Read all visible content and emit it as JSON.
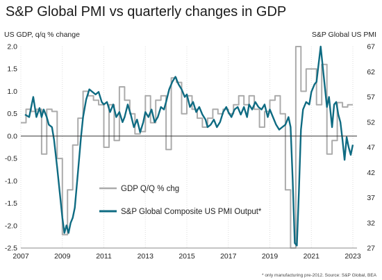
{
  "title": "S&P Global PMI vs quarterly changes in GDP",
  "footnote": "* only manufacturing pre-2012. Source: S&P Global, BEA",
  "colors": {
    "gdp": "#ababab",
    "pmi": "#0e6b82",
    "zero_line": "#333333",
    "grid": "#dcdcdc"
  },
  "chart_data": {
    "type": "line",
    "title": "S&P Global PMI vs quarterly changes in GDP",
    "left_axis": {
      "label": "US GDP, q/q % change",
      "ylim": [
        -2.5,
        2.0
      ],
      "ticks": [
        "2.0",
        "1.5",
        "1.0",
        "0.5",
        "0.0",
        "-0.5",
        "-1.0",
        "-1.5",
        "-2.0",
        "-2.5"
      ]
    },
    "right_axis": {
      "label": "S&P Global US PMI",
      "ylim": [
        27,
        67
      ],
      "ticks": [
        "67",
        "62",
        "57",
        "52",
        "47",
        "42",
        "37",
        "32",
        "27"
      ]
    },
    "x_axis": {
      "xlim": [
        2007.0,
        2023.2
      ],
      "ticks": [
        "2007",
        "2009",
        "2011",
        "2013",
        "2015",
        "2017",
        "2019",
        "2021",
        "2023"
      ]
    },
    "grid": true,
    "legend": {
      "placement": "lower-left",
      "entries": [
        "GDP Q/Q % chg",
        "S&P Global Composite US PMI Output*"
      ]
    },
    "series": [
      {
        "name": "GDP Q/Q % chg",
        "axis": "left",
        "points": [
          [
            2007.0,
            0.3
          ],
          [
            2007.25,
            0.3
          ],
          [
            2007.25,
            0.6
          ],
          [
            2007.5,
            0.6
          ],
          [
            2007.5,
            0.55
          ],
          [
            2007.75,
            0.55
          ],
          [
            2007.75,
            0.6
          ],
          [
            2008.0,
            0.6
          ],
          [
            2008.0,
            -0.4
          ],
          [
            2008.25,
            -0.4
          ],
          [
            2008.25,
            0.6
          ],
          [
            2008.5,
            0.6
          ],
          [
            2008.5,
            0.55
          ],
          [
            2008.75,
            0.55
          ],
          [
            2008.75,
            -0.5
          ],
          [
            2009.0,
            -0.5
          ],
          [
            2009.0,
            -2.2
          ],
          [
            2009.25,
            -2.2
          ],
          [
            2009.25,
            -1.2
          ],
          [
            2009.5,
            -1.2
          ],
          [
            2009.5,
            -0.2
          ],
          [
            2009.75,
            -0.2
          ],
          [
            2009.75,
            0.4
          ],
          [
            2010.0,
            0.4
          ],
          [
            2010.0,
            1.0
          ],
          [
            2010.25,
            1.0
          ],
          [
            2010.25,
            0.9
          ],
          [
            2010.5,
            0.9
          ],
          [
            2010.5,
            0.8
          ],
          [
            2010.75,
            0.8
          ],
          [
            2010.75,
            0.7
          ],
          [
            2011.0,
            0.7
          ],
          [
            2011.0,
            -0.25
          ],
          [
            2011.25,
            -0.25
          ],
          [
            2011.25,
            0.7
          ],
          [
            2011.5,
            0.7
          ],
          [
            2011.5,
            -0.1
          ],
          [
            2011.75,
            -0.1
          ],
          [
            2011.75,
            1.1
          ],
          [
            2012.0,
            1.1
          ],
          [
            2012.0,
            0.8
          ],
          [
            2012.25,
            0.8
          ],
          [
            2012.25,
            0.5
          ],
          [
            2012.5,
            0.5
          ],
          [
            2012.5,
            0.05
          ],
          [
            2012.75,
            0.05
          ],
          [
            2012.75,
            0.1
          ],
          [
            2013.0,
            0.1
          ],
          [
            2013.0,
            0.9
          ],
          [
            2013.25,
            0.9
          ],
          [
            2013.25,
            0.3
          ],
          [
            2013.5,
            0.3
          ],
          [
            2013.5,
            0.8
          ],
          [
            2013.75,
            0.8
          ],
          [
            2013.75,
            0.9
          ],
          [
            2014.0,
            0.9
          ],
          [
            2014.0,
            -0.3
          ],
          [
            2014.25,
            -0.3
          ],
          [
            2014.25,
            1.3
          ],
          [
            2014.5,
            1.3
          ],
          [
            2014.5,
            1.2
          ],
          [
            2014.75,
            1.2
          ],
          [
            2014.75,
            0.5
          ],
          [
            2015.0,
            0.5
          ],
          [
            2015.0,
            0.9
          ],
          [
            2015.25,
            0.9
          ],
          [
            2015.25,
            0.6
          ],
          [
            2015.5,
            0.6
          ],
          [
            2015.5,
            0.4
          ],
          [
            2015.75,
            0.4
          ],
          [
            2015.75,
            0.2
          ],
          [
            2016.0,
            0.2
          ],
          [
            2016.0,
            0.4
          ],
          [
            2016.25,
            0.4
          ],
          [
            2016.25,
            0.6
          ],
          [
            2016.5,
            0.6
          ],
          [
            2016.5,
            0.5
          ],
          [
            2016.75,
            0.5
          ],
          [
            2016.75,
            0.6
          ],
          [
            2017.0,
            0.6
          ],
          [
            2017.0,
            0.5
          ],
          [
            2017.25,
            0.5
          ],
          [
            2017.25,
            0.7
          ],
          [
            2017.5,
            0.7
          ],
          [
            2017.5,
            0.9
          ],
          [
            2017.75,
            0.9
          ],
          [
            2017.75,
            0.7
          ],
          [
            2018.0,
            0.7
          ],
          [
            2018.0,
            0.9
          ],
          [
            2018.25,
            0.9
          ],
          [
            2018.25,
            0.6
          ],
          [
            2018.5,
            0.6
          ],
          [
            2018.5,
            0.2
          ],
          [
            2018.75,
            0.2
          ],
          [
            2018.75,
            0.55
          ],
          [
            2019.0,
            0.55
          ],
          [
            2019.0,
            0.8
          ],
          [
            2019.25,
            0.8
          ],
          [
            2019.25,
            0.9
          ],
          [
            2019.5,
            0.9
          ],
          [
            2019.5,
            0.5
          ],
          [
            2019.75,
            0.5
          ],
          [
            2019.75,
            -1.2
          ],
          [
            2020.0,
            -1.2
          ],
          [
            2020.0,
            -2.5
          ],
          [
            2020.25,
            -2.5
          ],
          [
            2020.25,
            2.0
          ],
          [
            2020.5,
            2.0
          ],
          [
            2020.5,
            1.0
          ],
          [
            2020.75,
            1.0
          ],
          [
            2020.75,
            1.5
          ],
          [
            2021.0,
            1.5
          ],
          [
            2021.0,
            1.5
          ],
          [
            2021.25,
            1.5
          ],
          [
            2021.25,
            0.7
          ],
          [
            2021.5,
            0.7
          ],
          [
            2021.5,
            1.6
          ],
          [
            2021.75,
            1.6
          ],
          [
            2021.75,
            -0.4
          ],
          [
            2022.0,
            -0.4
          ],
          [
            2022.0,
            -0.1
          ],
          [
            2022.25,
            -0.1
          ],
          [
            2022.25,
            0.75
          ],
          [
            2022.5,
            0.75
          ],
          [
            2022.5,
            0.65
          ],
          [
            2022.75,
            0.65
          ],
          [
            2022.75,
            0.7
          ],
          [
            2023.0,
            0.7
          ]
        ]
      },
      {
        "name": "S&P Global Composite US PMI Output*",
        "axis": "right",
        "points": [
          [
            2007.2,
            53.5
          ],
          [
            2007.4,
            53.0
          ],
          [
            2007.6,
            57.0
          ],
          [
            2007.75,
            53.0
          ],
          [
            2007.9,
            54.8
          ],
          [
            2008.0,
            53.0
          ],
          [
            2008.1,
            54.5
          ],
          [
            2008.25,
            53.0
          ],
          [
            2008.35,
            51.5
          ],
          [
            2008.5,
            51.0
          ],
          [
            2008.6,
            48.5
          ],
          [
            2008.75,
            43.0
          ],
          [
            2008.9,
            37.0
          ],
          [
            2009.0,
            33.0
          ],
          [
            2009.1,
            30.0
          ],
          [
            2009.2,
            31.5
          ],
          [
            2009.3,
            30.0
          ],
          [
            2009.4,
            32.0
          ],
          [
            2009.5,
            33.0
          ],
          [
            2009.6,
            35.0
          ],
          [
            2009.75,
            42.0
          ],
          [
            2009.9,
            49.0
          ],
          [
            2010.0,
            53.0
          ],
          [
            2010.15,
            56.5
          ],
          [
            2010.3,
            58.5
          ],
          [
            2010.45,
            58.0
          ],
          [
            2010.6,
            57.5
          ],
          [
            2010.75,
            58.0
          ],
          [
            2010.9,
            56.0
          ],
          [
            2011.0,
            55.5
          ],
          [
            2011.15,
            56.0
          ],
          [
            2011.3,
            54.0
          ],
          [
            2011.45,
            55.5
          ],
          [
            2011.6,
            53.0
          ],
          [
            2011.75,
            54.0
          ],
          [
            2011.9,
            52.0
          ],
          [
            2012.0,
            53.0
          ],
          [
            2012.15,
            55.5
          ],
          [
            2012.3,
            53.5
          ],
          [
            2012.45,
            51.0
          ],
          [
            2012.6,
            52.5
          ],
          [
            2012.75,
            50.0
          ],
          [
            2012.9,
            52.0
          ],
          [
            2013.0,
            54.0
          ],
          [
            2013.15,
            53.0
          ],
          [
            2013.3,
            54.5
          ],
          [
            2013.45,
            52.0
          ],
          [
            2013.6,
            53.0
          ],
          [
            2013.75,
            55.0
          ],
          [
            2013.9,
            54.5
          ],
          [
            2014.0,
            56.0
          ],
          [
            2014.15,
            58.5
          ],
          [
            2014.3,
            60.0
          ],
          [
            2014.45,
            61.0
          ],
          [
            2014.6,
            59.5
          ],
          [
            2014.75,
            58.5
          ],
          [
            2014.9,
            57.0
          ],
          [
            2015.0,
            57.5
          ],
          [
            2015.15,
            55.0
          ],
          [
            2015.3,
            56.0
          ],
          [
            2015.45,
            54.0
          ],
          [
            2015.6,
            55.0
          ],
          [
            2015.75,
            53.5
          ],
          [
            2015.9,
            52.5
          ],
          [
            2016.0,
            51.0
          ],
          [
            2016.15,
            51.5
          ],
          [
            2016.3,
            52.5
          ],
          [
            2016.45,
            51.0
          ],
          [
            2016.6,
            52.0
          ],
          [
            2016.75,
            54.0
          ],
          [
            2016.9,
            55.0
          ],
          [
            2017.0,
            54.0
          ],
          [
            2017.15,
            53.0
          ],
          [
            2017.3,
            54.5
          ],
          [
            2017.45,
            55.0
          ],
          [
            2017.6,
            53.5
          ],
          [
            2017.75,
            55.0
          ],
          [
            2017.9,
            53.0
          ],
          [
            2018.0,
            55.5
          ],
          [
            2018.15,
            54.5
          ],
          [
            2018.3,
            56.0
          ],
          [
            2018.45,
            55.0
          ],
          [
            2018.6,
            54.5
          ],
          [
            2018.75,
            55.5
          ],
          [
            2018.9,
            53.0
          ],
          [
            2019.0,
            54.5
          ],
          [
            2019.15,
            53.0
          ],
          [
            2019.3,
            51.5
          ],
          [
            2019.45,
            50.5
          ],
          [
            2019.6,
            51.0
          ],
          [
            2019.75,
            51.5
          ],
          [
            2019.9,
            53.0
          ],
          [
            2020.0,
            51.0
          ],
          [
            2020.1,
            40.5
          ],
          [
            2020.2,
            28.0
          ],
          [
            2020.3,
            27.5
          ],
          [
            2020.4,
            38.0
          ],
          [
            2020.5,
            50.5
          ],
          [
            2020.6,
            54.5
          ],
          [
            2020.75,
            56.0
          ],
          [
            2020.9,
            55.5
          ],
          [
            2021.0,
            58.0
          ],
          [
            2021.15,
            59.5
          ],
          [
            2021.25,
            60.0
          ],
          [
            2021.35,
            63.5
          ],
          [
            2021.45,
            67.5
          ],
          [
            2021.55,
            63.0
          ],
          [
            2021.65,
            59.0
          ],
          [
            2021.75,
            55.0
          ],
          [
            2021.85,
            57.0
          ],
          [
            2022.0,
            51.0
          ],
          [
            2022.1,
            55.5
          ],
          [
            2022.2,
            56.0
          ],
          [
            2022.3,
            53.5
          ],
          [
            2022.4,
            52.0
          ],
          [
            2022.5,
            48.5
          ],
          [
            2022.6,
            44.5
          ],
          [
            2022.7,
            49.0
          ],
          [
            2022.8,
            47.0
          ],
          [
            2022.9,
            45.5
          ],
          [
            2023.0,
            47.5
          ]
        ]
      }
    ]
  }
}
